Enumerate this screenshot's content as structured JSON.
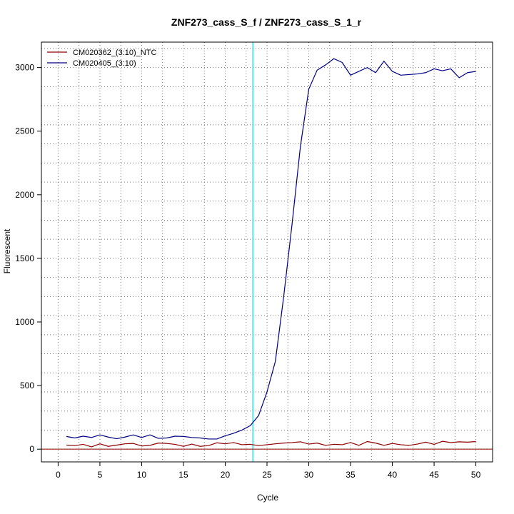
{
  "chart_data": {
    "type": "line",
    "title": "ZNF273_cass_S_f / ZNF273_cass_S_1_r",
    "xlabel": "Cycle",
    "ylabel": "Fluorescent",
    "xlim": [
      -2,
      52
    ],
    "ylim": [
      -100,
      3200
    ],
    "x_ticks": [
      0,
      5,
      10,
      15,
      20,
      25,
      30,
      35,
      40,
      45,
      50
    ],
    "y_ticks": [
      0,
      500,
      1000,
      1500,
      2000,
      2500,
      3000
    ],
    "grid": true,
    "grid_x": [
      0,
      2.5,
      5,
      7.5,
      10,
      12.5,
      15,
      17.5,
      20,
      22.5,
      25,
      27.5,
      30,
      32.5,
      35,
      37.5,
      40,
      42.5,
      45,
      47.5,
      50
    ],
    "grid_y": [
      0,
      150,
      300,
      450,
      600,
      750,
      900,
      1050,
      1200,
      1350,
      1500,
      1650,
      1800,
      1950,
      2100,
      2250,
      2400,
      2550,
      2700,
      2850,
      3000,
      3150
    ],
    "threshold_cycle": 23.3,
    "threshold_color": "#00e5ee",
    "baseline_value": 0,
    "baseline_color": "#8b0000",
    "legend_position": "top-left",
    "x": [
      1,
      2,
      3,
      4,
      5,
      6,
      7,
      8,
      9,
      10,
      11,
      12,
      13,
      14,
      15,
      16,
      17,
      18,
      19,
      20,
      21,
      22,
      23,
      24,
      25,
      26,
      27,
      28,
      29,
      30,
      31,
      32,
      33,
      34,
      35,
      36,
      37,
      38,
      39,
      40,
      41,
      42,
      43,
      44,
      45,
      46,
      47,
      48,
      49,
      50
    ],
    "series": [
      {
        "name": "CM020362_(3:10)_NTC",
        "color": "#8b0000",
        "values": [
          32,
          28,
          38,
          18,
          42,
          22,
          32,
          42,
          45,
          25,
          30,
          48,
          45,
          38,
          22,
          40,
          22,
          28,
          50,
          42,
          52,
          35,
          38,
          28,
          35,
          42,
          48,
          52,
          58,
          40,
          48,
          30,
          38,
          35,
          52,
          30,
          60,
          48,
          30,
          45,
          35,
          30,
          40,
          55,
          38,
          62,
          52,
          58,
          55,
          60
        ]
      },
      {
        "name": "CM020405_(3:10)",
        "color": "#000080",
        "values": [
          100,
          88,
          102,
          92,
          112,
          95,
          82,
          95,
          112,
          92,
          112,
          85,
          88,
          102,
          100,
          92,
          88,
          80,
          80,
          105,
          125,
          150,
          185,
          265,
          450,
          690,
          1200,
          1770,
          2380,
          2830,
          2980,
          3020,
          3070,
          3040,
          2940,
          2970,
          3000,
          2960,
          3050,
          2970,
          2940,
          2945,
          2950,
          2960,
          2990,
          2975,
          2990,
          2920,
          2960,
          2970
        ]
      }
    ]
  }
}
